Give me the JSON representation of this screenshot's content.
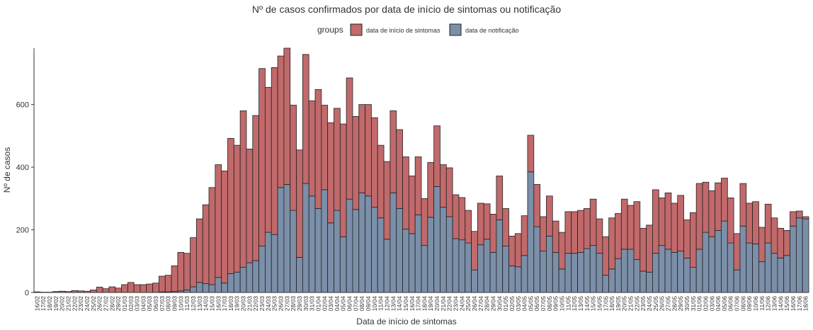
{
  "chart_data": {
    "type": "stacked_bar",
    "title": "Nº de casos confirmados por data de início de sintomas ou notificação",
    "xlabel": "Data de início de sintomas",
    "ylabel": "Nº de casos",
    "legend_title": "groups",
    "categories": [
      "16/02",
      "17/02",
      "18/02",
      "19/02",
      "20/02",
      "21/02",
      "22/02",
      "23/02",
      "24/02",
      "25/02",
      "26/02",
      "27/02",
      "28/02",
      "29/02",
      "01/03",
      "02/03",
      "03/03",
      "04/03",
      "05/03",
      "06/03",
      "07/03",
      "08/03",
      "09/03",
      "10/03",
      "11/03",
      "12/03",
      "13/03",
      "14/03",
      "15/03",
      "16/03",
      "17/03",
      "18/03",
      "19/03",
      "20/03",
      "21/03",
      "22/03",
      "23/03",
      "24/03",
      "25/03",
      "26/03",
      "27/03",
      "28/03",
      "29/03",
      "30/03",
      "31/03",
      "01/04",
      "02/04",
      "03/04",
      "04/04",
      "05/04",
      "06/04",
      "07/04",
      "08/04",
      "09/04",
      "10/04",
      "11/04",
      "12/04",
      "13/04",
      "14/04",
      "15/04",
      "16/04",
      "17/04",
      "18/04",
      "19/04",
      "20/04",
      "21/04",
      "22/04",
      "23/04",
      "24/04",
      "25/04",
      "26/04",
      "27/04",
      "28/04",
      "29/04",
      "30/04",
      "01/05",
      "02/05",
      "03/05",
      "04/05",
      "05/05",
      "06/05",
      "07/05",
      "08/05",
      "09/05",
      "10/05",
      "11/05",
      "12/05",
      "13/05",
      "14/05",
      "15/05",
      "16/05",
      "17/05",
      "18/05",
      "19/05",
      "20/05",
      "21/05",
      "22/05",
      "23/05",
      "24/05",
      "25/05",
      "26/05",
      "27/05",
      "28/05",
      "29/05",
      "30/05",
      "31/05",
      "01/06",
      "02/06",
      "03/06",
      "04/06",
      "05/06",
      "06/06",
      "07/06",
      "08/06",
      "09/06",
      "10/06",
      "11/06",
      "12/06",
      "13/06",
      "14/06",
      "15/06",
      "16/06",
      "17/06",
      "18/06"
    ],
    "series": [
      {
        "name": "data de início de sintomas",
        "color": "#c1696b",
        "values": [
          2,
          1,
          1,
          3,
          4,
          3,
          6,
          5,
          4,
          8,
          17,
          12,
          18,
          14,
          25,
          32,
          25,
          25,
          27,
          30,
          50,
          53,
          82,
          123,
          117,
          157,
          203,
          252,
          310,
          360,
          358,
          432,
          405,
          500,
          363,
          463,
          567,
          463,
          533,
          420,
          435,
          336,
          343,
          412,
          304,
          380,
          270,
          320,
          326,
          360,
          387,
          297,
          282,
          292,
          286,
          232,
          248,
          262,
          252,
          231,
          184,
          185,
          150,
          175,
          194,
          136,
          156,
          140,
          135,
          104,
          123,
          133,
          113,
          122,
          140,
          120,
          95,
          106,
          127,
          117,
          135,
          110,
          128,
          100,
          117,
          133,
          133,
          134,
          128,
          148,
          110,
          123,
          163,
          144,
          160,
          140,
          185,
          137,
          150,
          203,
          152,
          180,
          157,
          178,
          122,
          175,
          210,
          160,
          147,
          152,
          137,
          144,
          116,
          136,
          127,
          135,
          110,
          124,
          113,
          95,
          80,
          46,
          22,
          7
        ]
      },
      {
        "name": "data de notificação",
        "color": "#7b8fa9",
        "values": [
          0,
          0,
          0,
          0,
          0,
          0,
          0,
          0,
          0,
          0,
          0,
          0,
          0,
          0,
          0,
          0,
          0,
          0,
          0,
          0,
          2,
          2,
          3,
          5,
          8,
          18,
          32,
          28,
          25,
          48,
          30,
          60,
          65,
          80,
          95,
          102,
          148,
          192,
          185,
          335,
          345,
          262,
          112,
          348,
          308,
          268,
          328,
          222,
          262,
          178,
          298,
          265,
          318,
          308,
          272,
          238,
          170,
          318,
          268,
          202,
          188,
          248,
          150,
          240,
          338,
          272,
          242,
          172,
          168,
          158,
          72,
          152,
          170,
          128,
          232,
          148,
          85,
          82,
          118,
          385,
          210,
          132,
          180,
          128,
          75,
          125,
          125,
          128,
          140,
          150,
          125,
          55,
          75,
          108,
          138,
          138,
          105,
          68,
          65,
          125,
          150,
          138,
          128,
          132,
          110,
          80,
          138,
          192,
          178,
          198,
          228,
          158,
          72,
          212,
          158,
          155,
          98,
          158,
          125,
          110,
          118,
          212,
          238,
          235
        ]
      }
    ],
    "ylim": [
      0,
      780
    ],
    "yticks": [
      0,
      200,
      400,
      600
    ]
  }
}
